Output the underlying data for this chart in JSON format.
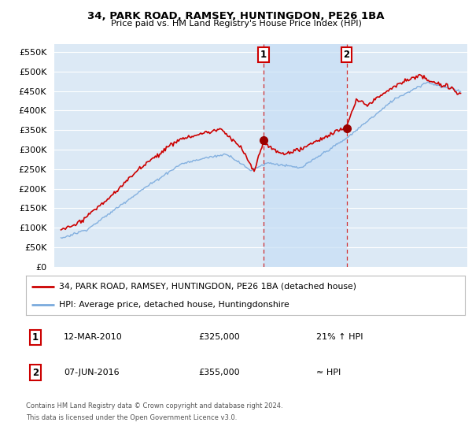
{
  "title": "34, PARK ROAD, RAMSEY, HUNTINGDON, PE26 1BA",
  "subtitle": "Price paid vs. HM Land Registry's House Price Index (HPI)",
  "background_color": "#ffffff",
  "plot_bg_color": "#dce9f5",
  "grid_color": "#ffffff",
  "shade_color": "#c8dff5",
  "ylim": [
    0,
    570000
  ],
  "yticks": [
    0,
    50000,
    100000,
    150000,
    200000,
    250000,
    300000,
    350000,
    400000,
    450000,
    500000,
    550000
  ],
  "sale1_x": 2010.2,
  "sale1_price": 325000,
  "sale2_x": 2016.44,
  "sale2_price": 355000,
  "legend_house": "34, PARK ROAD, RAMSEY, HUNTINGDON, PE26 1BA (detached house)",
  "legend_hpi": "HPI: Average price, detached house, Huntingdonshire",
  "footer1": "Contains HM Land Registry data © Crown copyright and database right 2024.",
  "footer2": "This data is licensed under the Open Government Licence v3.0.",
  "note1_label": "1",
  "note1_date": "12-MAR-2010",
  "note1_price": "£325,000",
  "note1_rel": "21% ↑ HPI",
  "note2_label": "2",
  "note2_date": "07-JUN-2016",
  "note2_price": "£355,000",
  "note2_rel": "≈ HPI",
  "house_color": "#cc0000",
  "hpi_color": "#7aaadd",
  "vline_color": "#cc0000",
  "marker_color": "#990000"
}
